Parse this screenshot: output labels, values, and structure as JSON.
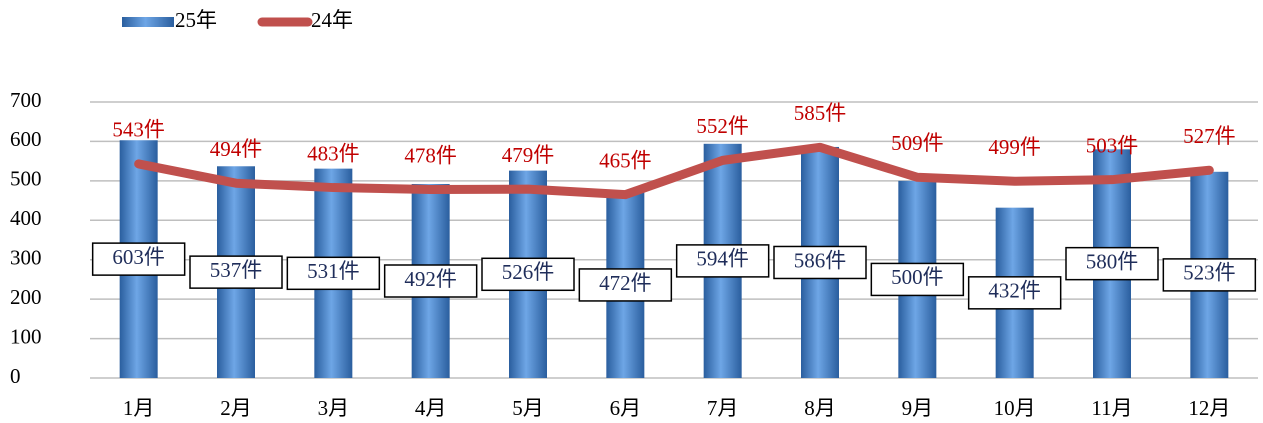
{
  "chart_data": {
    "type": "combo",
    "categories": [
      "1月",
      "2月",
      "3月",
      "4月",
      "5月",
      "6月",
      "7月",
      "8月",
      "9月",
      "10月",
      "11月",
      "12月"
    ],
    "series": [
      {
        "name": "25年",
        "type": "bar",
        "color": "#4a86cf",
        "values": [
          603,
          537,
          531,
          492,
          526,
          472,
          594,
          586,
          500,
          432,
          580,
          523
        ],
        "value_labels": [
          "603件",
          "537件",
          "531件",
          "492件",
          "526件",
          "472件",
          "594件",
          "586件",
          "500件",
          "432件",
          "580件",
          "523件"
        ]
      },
      {
        "name": "24年",
        "type": "line",
        "color": "#c0504d",
        "values": [
          543,
          494,
          483,
          478,
          479,
          465,
          552,
          585,
          509,
          499,
          503,
          527
        ],
        "value_labels": [
          "543件",
          "494件",
          "483件",
          "478件",
          "479件",
          "465件",
          "552件",
          "585件",
          "509件",
          "499件",
          "503件",
          "527件"
        ]
      }
    ],
    "ylim": [
      0,
      700
    ],
    "yticks": [
      0,
      100,
      200,
      300,
      400,
      500,
      600,
      700
    ],
    "grid": true,
    "legend": "top-left"
  }
}
